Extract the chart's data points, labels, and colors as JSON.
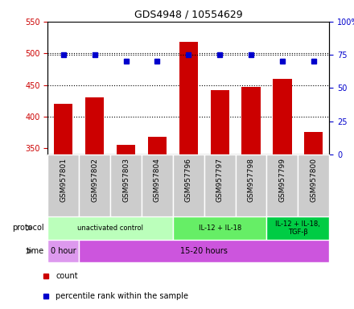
{
  "title": "GDS4948 / 10554629",
  "samples": [
    "GSM957801",
    "GSM957802",
    "GSM957803",
    "GSM957804",
    "GSM957796",
    "GSM957797",
    "GSM957798",
    "GSM957799",
    "GSM957800"
  ],
  "counts": [
    420,
    430,
    355,
    368,
    518,
    442,
    447,
    460,
    376
  ],
  "percentiles": [
    75,
    75,
    70,
    70,
    75,
    75,
    75,
    70,
    70
  ],
  "ylim_left": [
    340,
    550
  ],
  "ylim_right": [
    0,
    100
  ],
  "yticks_left": [
    350,
    400,
    450,
    500,
    550
  ],
  "yticks_right": [
    0,
    25,
    50,
    75,
    100
  ],
  "bar_color": "#cc0000",
  "dot_color": "#0000cc",
  "protocol_groups": [
    {
      "label": "unactivated control",
      "start": 0,
      "end": 4,
      "color": "#bbffbb"
    },
    {
      "label": "IL-12 + IL-18",
      "start": 4,
      "end": 7,
      "color": "#66ee66"
    },
    {
      "label": "IL-12 + IL-18,\nTGF-β",
      "start": 7,
      "end": 9,
      "color": "#00cc44"
    }
  ],
  "time_groups": [
    {
      "label": "0 hour",
      "start": 0,
      "end": 1,
      "color": "#dd99ee"
    },
    {
      "label": "15-20 hours",
      "start": 1,
      "end": 9,
      "color": "#cc55dd"
    }
  ],
  "label_bg_color": "#cccccc",
  "legend_count_color": "#cc0000",
  "legend_pct_color": "#0000cc",
  "left_color": "#cc0000",
  "right_color": "#0000cc",
  "fig_width": 4.4,
  "fig_height": 3.84,
  "dpi": 100
}
